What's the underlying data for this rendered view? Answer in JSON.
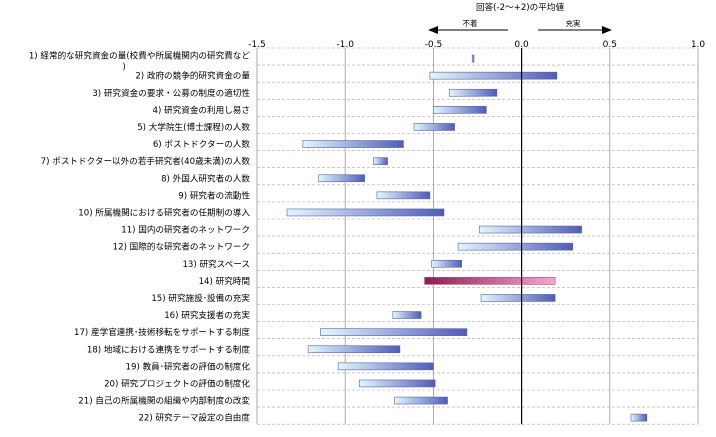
{
  "chart_data": {
    "type": "bar",
    "title": "回答(-2～+2)の平均値",
    "direction_left": "不着",
    "direction_right": "充実",
    "xlim": [
      -1.5,
      1.0
    ],
    "x_ticks": [
      "-1.5",
      "-1.0",
      "-0.5",
      "0.0",
      "0.5",
      "1.0"
    ],
    "x_tick_values": [
      -1.5,
      -1.0,
      -0.5,
      0.0,
      0.5,
      1.0
    ],
    "grid": true,
    "categories": [
      "1) 経常的な研究資金の量(校費や所属機関内の研究費など)",
      "2) 政府の競争的研究資金の量",
      "3) 研究資金の要求・公募の制度の適切性",
      "4) 研究資金の利用し易さ",
      "5) 大学院生(博士課程)の人数",
      "6) ポストドクターの人数",
      "7) ポストドクター以外の若手研究者(40歳未満)の人数",
      "8) 外国人研究者の人数",
      "9) 研究者の流動性",
      "10) 所属機関における研究者の任期制の導入",
      "11) 国内の研究者のネットワーク",
      "12) 国際的な研究者のネットワーク",
      "13) 研究スペース",
      "14) 研究時間",
      "15) 研究施設･設備の充実",
      "16) 研究支援者の充実",
      "17) 産学官連携･技術移転をサポートする制度",
      "18) 地域における連携をサポートする制度",
      "19) 教員･研究者の評価の制度化",
      "20) 研究プロジェクトの評価の制度化",
      "21) 自己の所属機関の組織や内部制度の改変",
      "22) 研究テーマ設定の自由度"
    ],
    "series": [
      {
        "ranges": [
          [
            -0.28,
            -0.27
          ],
          [
            -0.52,
            0.2
          ],
          [
            -0.41,
            -0.14
          ],
          [
            -0.5,
            -0.2
          ],
          [
            -0.61,
            -0.38
          ],
          [
            -1.24,
            -0.67
          ],
          [
            -0.84,
            -0.76
          ],
          [
            -1.15,
            -0.89
          ],
          [
            -0.82,
            -0.52
          ],
          [
            -1.33,
            -0.44
          ],
          [
            -0.24,
            0.34
          ],
          [
            -0.36,
            0.29
          ],
          [
            -0.51,
            -0.34
          ],
          [
            -0.55,
            0.19
          ],
          [
            -0.23,
            0.19
          ],
          [
            -0.73,
            -0.57
          ],
          [
            -1.14,
            -0.31
          ],
          [
            -1.21,
            -0.69
          ],
          [
            -1.04,
            -0.5
          ],
          [
            -0.92,
            -0.49
          ],
          [
            -0.72,
            -0.42
          ],
          [
            0.62,
            0.71
          ]
        ]
      }
    ],
    "highlight_index": 13,
    "colors": {
      "bar_light": "#e2f7fc",
      "bar_dark": "#4f5cb8",
      "highlight_light": "#f8a6cc",
      "highlight_dark": "#8c1f50",
      "bar_edge": "#5a5fa5",
      "grid": "#9a9a9a"
    }
  }
}
